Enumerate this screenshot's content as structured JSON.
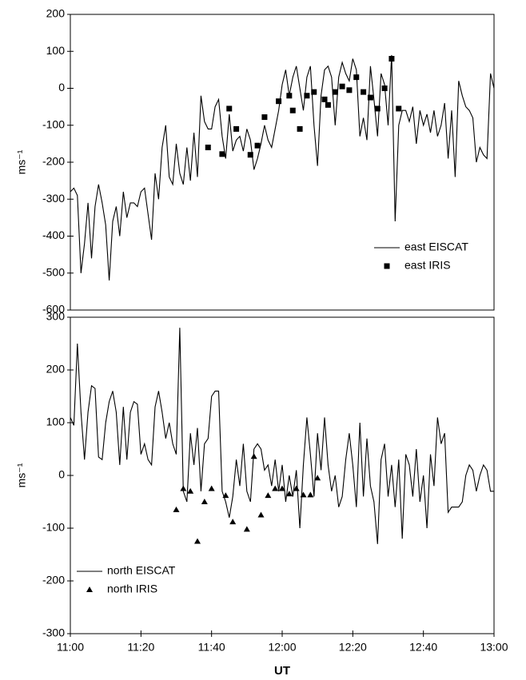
{
  "chart_data": [
    {
      "type": "line",
      "ylabel": "ms⁻¹",
      "legend": "lower right",
      "xlim": [
        "11:00",
        "13:00"
      ],
      "ylim": [
        -600,
        200
      ],
      "yticks": [
        -600,
        -500,
        -400,
        -300,
        -200,
        -100,
        0,
        100,
        200
      ],
      "x": [
        "11:00",
        "11:01",
        "11:02",
        "11:03",
        "11:04",
        "11:05",
        "11:06",
        "11:07",
        "11:08",
        "11:09",
        "11:10",
        "11:11",
        "11:12",
        "11:13",
        "11:14",
        "11:15",
        "11:16",
        "11:17",
        "11:18",
        "11:19",
        "11:20",
        "11:21",
        "11:22",
        "11:23",
        "11:24",
        "11:25",
        "11:26",
        "11:27",
        "11:28",
        "11:29",
        "11:30",
        "11:31",
        "11:32",
        "11:33",
        "11:34",
        "11:35",
        "11:36",
        "11:37",
        "11:38",
        "11:39",
        "11:40",
        "11:41",
        "11:42",
        "11:43",
        "11:44",
        "11:45",
        "11:46",
        "11:47",
        "11:48",
        "11:49",
        "11:50",
        "11:51",
        "11:52",
        "11:53",
        "11:54",
        "11:55",
        "11:56",
        "11:57",
        "11:58",
        "11:59",
        "12:00",
        "12:01",
        "12:02",
        "12:03",
        "12:04",
        "12:05",
        "12:06",
        "12:07",
        "12:08",
        "12:09",
        "12:10",
        "12:11",
        "12:12",
        "12:13",
        "12:14",
        "12:15",
        "12:16",
        "12:17",
        "12:18",
        "12:19",
        "12:20",
        "12:21",
        "12:22",
        "12:23",
        "12:24",
        "12:25",
        "12:26",
        "12:27",
        "12:28",
        "12:29",
        "12:30",
        "12:31",
        "12:32",
        "12:33",
        "12:34",
        "12:35",
        "12:36",
        "12:37",
        "12:38",
        "12:39",
        "12:40",
        "12:41",
        "12:42",
        "12:43",
        "12:44",
        "12:45",
        "12:46",
        "12:47",
        "12:48",
        "12:49",
        "12:50",
        "12:51",
        "12:52",
        "12:53",
        "12:54",
        "12:55",
        "12:56",
        "12:57",
        "12:58",
        "12:59",
        "13:00"
      ],
      "series": [
        {
          "name": "east EISCAT",
          "color": "#000000",
          "values": [
            -280,
            -270,
            -290,
            -500,
            -420,
            -310,
            -460,
            -320,
            -260,
            -310,
            -370,
            -520,
            -360,
            -320,
            -400,
            -280,
            -350,
            -310,
            -310,
            -320,
            -280,
            -270,
            -340,
            -410,
            -230,
            -300,
            -160,
            -100,
            -240,
            -260,
            -150,
            -230,
            -260,
            -160,
            -250,
            -120,
            -240,
            -20,
            -90,
            -110,
            -110,
            -50,
            -30,
            -130,
            -190,
            -70,
            -170,
            -140,
            -130,
            -170,
            -110,
            -140,
            -220,
            -190,
            -150,
            -100,
            -140,
            -160,
            -110,
            -60,
            10,
            50,
            -20,
            30,
            60,
            0,
            -60,
            30,
            60,
            -100,
            -210,
            -20,
            50,
            60,
            30,
            -100,
            30,
            70,
            40,
            20,
            80,
            50,
            -130,
            -80,
            -140,
            60,
            -30,
            -130,
            40,
            10,
            -100,
            90,
            -360,
            -100,
            -60,
            -60,
            -90,
            -50,
            -150,
            -60,
            -100,
            -70,
            -120,
            -60,
            -130,
            -100,
            -40,
            -190,
            -60,
            -240,
            20,
            -20,
            -50,
            -60,
            -80,
            -200,
            -160,
            -180,
            -190,
            40,
            0
          ]
        },
        {
          "name": "east IRIS",
          "color": "#000000",
          "marker": "square",
          "x": [
            "11:39",
            "11:43",
            "11:45",
            "11:47",
            "11:51",
            "11:53",
            "11:55",
            "11:59",
            "12:02",
            "12:03",
            "12:05",
            "12:07",
            "12:09",
            "12:12",
            "12:13",
            "12:15",
            "12:17",
            "12:19",
            "12:21",
            "12:23",
            "12:25",
            "12:27",
            "12:29",
            "12:31",
            "12:33"
          ],
          "values": [
            -160,
            -178,
            -55,
            -110,
            -180,
            -155,
            -78,
            -35,
            -20,
            -60,
            -110,
            -20,
            -10,
            -30,
            -45,
            -10,
            5,
            -5,
            30,
            -10,
            -25,
            -55,
            0,
            80,
            -55
          ]
        }
      ]
    },
    {
      "type": "line",
      "ylabel": "ms⁻¹",
      "xlabel": "UT",
      "legend": "lower left",
      "xlim": [
        "11:00",
        "13:00"
      ],
      "ylim": [
        -300,
        300
      ],
      "yticks": [
        -300,
        -200,
        -100,
        0,
        100,
        200,
        300
      ],
      "xticks": [
        "11:00",
        "11:20",
        "11:40",
        "12:00",
        "12:20",
        "12:40",
        "13:00"
      ],
      "x": [
        "11:00",
        "11:01",
        "11:02",
        "11:03",
        "11:04",
        "11:05",
        "11:06",
        "11:07",
        "11:08",
        "11:09",
        "11:10",
        "11:11",
        "11:12",
        "11:13",
        "11:14",
        "11:15",
        "11:16",
        "11:17",
        "11:18",
        "11:19",
        "11:20",
        "11:21",
        "11:22",
        "11:23",
        "11:24",
        "11:25",
        "11:26",
        "11:27",
        "11:28",
        "11:29",
        "11:30",
        "11:31",
        "11:32",
        "11:33",
        "11:34",
        "11:35",
        "11:36",
        "11:37",
        "11:38",
        "11:39",
        "11:40",
        "11:41",
        "11:42",
        "11:43",
        "11:44",
        "11:45",
        "11:46",
        "11:47",
        "11:48",
        "11:49",
        "11:50",
        "11:51",
        "11:52",
        "11:53",
        "11:54",
        "11:55",
        "11:56",
        "11:57",
        "11:58",
        "11:59",
        "12:00",
        "12:01",
        "12:02",
        "12:03",
        "12:04",
        "12:05",
        "12:06",
        "12:07",
        "12:08",
        "12:09",
        "12:10",
        "12:11",
        "12:12",
        "12:13",
        "12:14",
        "12:15",
        "12:16",
        "12:17",
        "12:18",
        "12:19",
        "12:20",
        "12:21",
        "12:22",
        "12:23",
        "12:24",
        "12:25",
        "12:26",
        "12:27",
        "12:28",
        "12:29",
        "12:30",
        "12:31",
        "12:32",
        "12:33",
        "12:34",
        "12:35",
        "12:36",
        "12:37",
        "12:38",
        "12:39",
        "12:40",
        "12:41",
        "12:42",
        "12:43",
        "12:44",
        "12:45",
        "12:46",
        "12:47",
        "12:48",
        "12:49",
        "12:50",
        "12:51",
        "12:52",
        "12:53",
        "12:54",
        "12:55",
        "12:56",
        "12:57",
        "12:58",
        "12:59",
        "13:00"
      ],
      "series": [
        {
          "name": "north EISCAT",
          "color": "#000000",
          "values": [
            110,
            95,
            250,
            120,
            30,
            120,
            170,
            165,
            35,
            30,
            100,
            140,
            160,
            120,
            20,
            130,
            30,
            120,
            140,
            135,
            40,
            60,
            30,
            20,
            130,
            160,
            120,
            70,
            100,
            60,
            40,
            280,
            -30,
            -50,
            80,
            20,
            90,
            -30,
            60,
            70,
            150,
            160,
            160,
            -30,
            -50,
            -80,
            -40,
            30,
            -20,
            60,
            -30,
            -50,
            50,
            60,
            50,
            10,
            20,
            -20,
            30,
            -30,
            20,
            -50,
            0,
            -40,
            10,
            -100,
            20,
            110,
            40,
            -40,
            80,
            10,
            110,
            20,
            -30,
            0,
            -60,
            -40,
            30,
            80,
            20,
            -60,
            100,
            -40,
            70,
            -20,
            -50,
            -130,
            30,
            60,
            -40,
            20,
            -60,
            30,
            -120,
            40,
            20,
            -40,
            50,
            -50,
            0,
            -100,
            40,
            -20,
            110,
            60,
            80,
            -70,
            -60,
            -60,
            -60,
            -50,
            0,
            20,
            10,
            -30,
            0,
            20,
            10,
            -30,
            -30
          ]
        },
        {
          "name": "north IRIS",
          "color": "#000000",
          "marker": "triangle",
          "x": [
            "11:30",
            "11:32",
            "11:34",
            "11:36",
            "11:38",
            "11:40",
            "11:44",
            "11:46",
            "11:50",
            "11:52",
            "11:54",
            "11:56",
            "11:58",
            "12:00",
            "12:02",
            "12:04",
            "12:06",
            "12:08",
            "12:10"
          ],
          "values": [
            -65,
            -25,
            -30,
            -125,
            -50,
            -25,
            -38,
            -88,
            -102,
            36,
            -75,
            -38,
            -25,
            -25,
            -35,
            -25,
            -37,
            -37,
            -5
          ]
        }
      ]
    }
  ]
}
